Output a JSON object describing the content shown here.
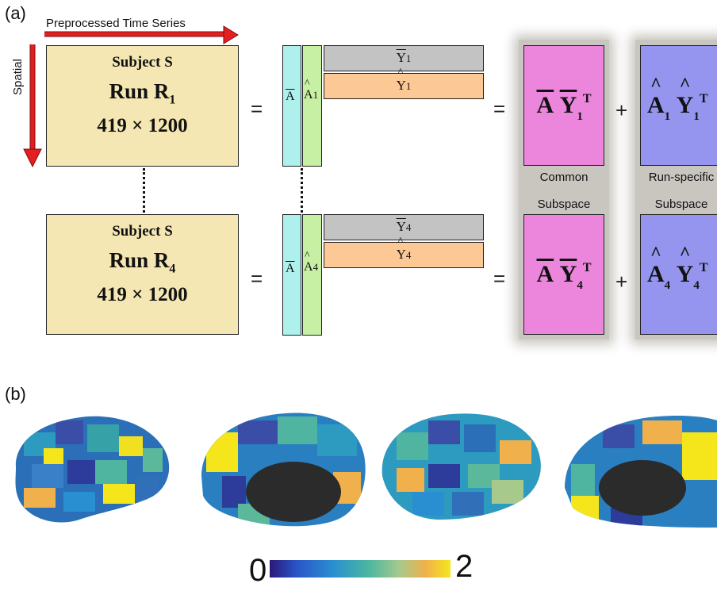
{
  "panel_a": {
    "label": "(a)",
    "time_axis": "Preprocessed Time Series",
    "space_axis": "Spatial",
    "subject_top": {
      "subject": "Subject S",
      "run": "Run R",
      "run_sub": "1",
      "dims": "419 × 1200"
    },
    "subject_bottom": {
      "subject": "Subject S",
      "run": "Run R",
      "run_sub": "4",
      "dims": "419 × 1200"
    },
    "equals": "=",
    "plus": "+",
    "factors_top": {
      "a_common": "A",
      "a_specific": "A",
      "a_specific_sub": "1",
      "y_common": "Y",
      "y_common_sub": "1",
      "y_specific": "Y",
      "y_specific_sub": "1"
    },
    "factors_bottom": {
      "a_common": "A",
      "a_specific": "A",
      "a_specific_sub": "4",
      "y_common": "Y",
      "y_common_sub": "4",
      "y_specific": "Y",
      "y_specific_sub": "4"
    },
    "common_label_1": "Common",
    "common_label_2": "Subspace",
    "specific_label_1": "Run-specific",
    "specific_label_2": "Subspace",
    "transpose": "T",
    "colors": {
      "subject_box": "#f5e7b3",
      "a_common": "#aef0ec",
      "a_specific": "#c8f0a4",
      "y_common": "#c3c3c3",
      "y_specific": "#fcc895",
      "common_result": "#ec86dc",
      "specific_result": "#9595f0",
      "arrow": "#e31f1f"
    }
  },
  "panel_b": {
    "label": "(b)",
    "colorbar_min": "0",
    "colorbar_max": "2",
    "colormap": [
      "#2b1878",
      "#2a55c8",
      "#2a8fd0",
      "#4cb7a0",
      "#a8c98c",
      "#f0b04c",
      "#f5e61c"
    ]
  }
}
